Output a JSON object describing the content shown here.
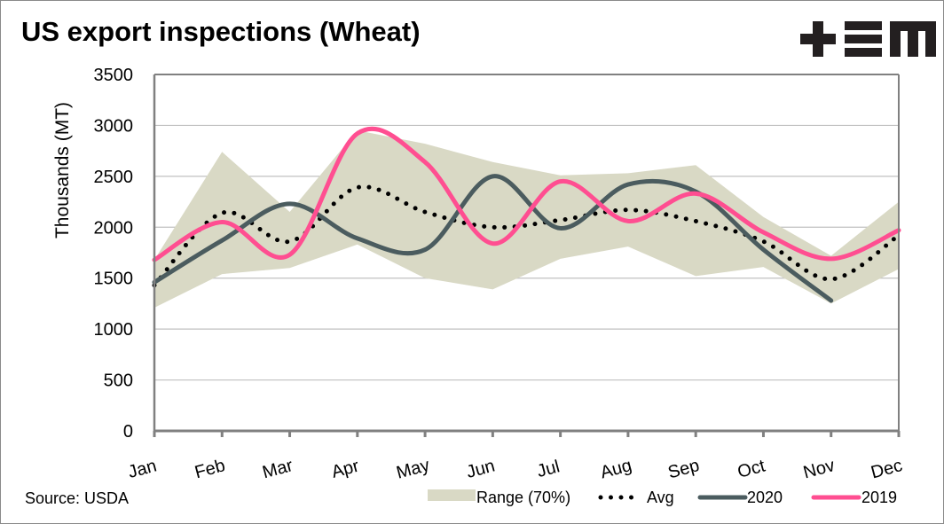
{
  "header": {
    "title": "US export inspections (Wheat)",
    "logo": "tem-logo"
  },
  "footer": {
    "source": "Source: USDA"
  },
  "colors": {
    "range": "#d9d9c5",
    "avg": "#000000",
    "s2020": "#4b5c5f",
    "s2019": "#ff4e91",
    "axis": "#808080",
    "grid": "#c0c0c0"
  },
  "chart_data": {
    "type": "line",
    "title": "US export inspections (Wheat)",
    "xlabel": "",
    "ylabel": "Thousands (MT)",
    "ylim": [
      0,
      3500
    ],
    "yticks": [
      0,
      500,
      1000,
      1500,
      2000,
      2500,
      3000,
      3500
    ],
    "ytick_labels": [
      "0",
      "500",
      "1000",
      "1500",
      "2000",
      "2500",
      "3000",
      "3500"
    ],
    "grid": true,
    "categories": [
      "Jan",
      "Feb",
      "Mar",
      "Apr",
      "May",
      "Jun",
      "Jul",
      "Aug",
      "Sep",
      "Oct",
      "Nov",
      "Dec"
    ],
    "range": {
      "name": "Range (70%)",
      "upper": [
        1680,
        2740,
        2150,
        2950,
        2820,
        2640,
        2510,
        2530,
        2610,
        2100,
        1720,
        2250
      ],
      "lower": [
        1210,
        1540,
        1600,
        1830,
        1500,
        1390,
        1690,
        1810,
        1520,
        1610,
        1250,
        1590
      ]
    },
    "series": [
      {
        "name": "Avg",
        "style": "dotted",
        "values": [
          1430,
          2140,
          1860,
          2390,
          2150,
          2000,
          2070,
          2170,
          2060,
          1860,
          1490,
          1920
        ]
      },
      {
        "name": "2020",
        "style": "solid",
        "values": [
          1460,
          1870,
          2230,
          1890,
          1780,
          2500,
          1990,
          2420,
          2350,
          1780,
          1280,
          null
        ]
      },
      {
        "name": "2019",
        "style": "solid",
        "values": [
          1680,
          2050,
          1730,
          2920,
          2640,
          1840,
          2450,
          2060,
          2330,
          1950,
          1690,
          1970
        ]
      }
    ],
    "legend": {
      "placement": "bottom-right",
      "entries": [
        "Range (70%)",
        "Avg",
        "2020",
        "2019"
      ]
    }
  }
}
